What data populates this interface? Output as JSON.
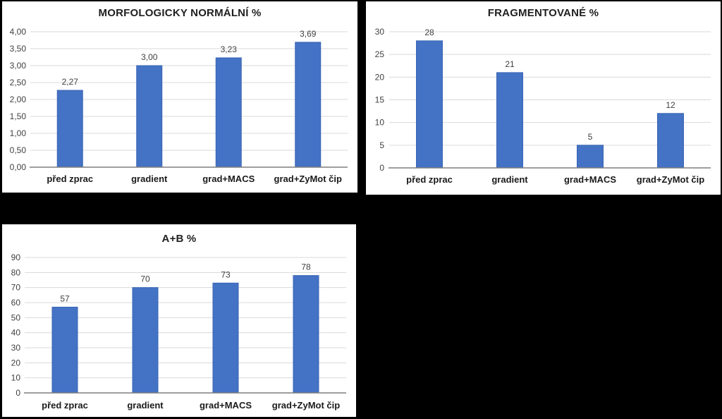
{
  "page": {
    "background": "#000000",
    "panel_background": "#ffffff"
  },
  "colors": {
    "bar": "#4472C4",
    "bar_border": "#3a65b5",
    "grid": "#d9d9d9",
    "axis": "#7f7f7f",
    "tick_text": "#404040",
    "label_text": "#404040",
    "category_text": "#1a1a1a",
    "title_text": "#1f1f1f"
  },
  "chart_data": [
    {
      "type": "bar",
      "title": "MORFOLOGICKY NORMÁLNÍ %",
      "xlabel": "",
      "ylabel": "",
      "categories": [
        "před zprac",
        "gradient",
        "grad+MACS",
        "grad+ZyMot čip"
      ],
      "values": [
        2.27,
        3.0,
        3.23,
        3.69
      ],
      "data_labels": [
        "2,27",
        "3,00",
        "3,23",
        "3,69"
      ],
      "ylim": [
        0,
        4
      ],
      "ytick_step": 0.5,
      "ytick_labels": [
        "0,00",
        "0,50",
        "1,00",
        "1,50",
        "2,00",
        "2,50",
        "3,00",
        "3,50",
        "4,00"
      ],
      "grid": true,
      "legend": "none"
    },
    {
      "type": "bar",
      "title": "FRAGMENTOVANÉ %",
      "xlabel": "",
      "ylabel": "",
      "categories": [
        "před zprac",
        "gradient",
        "grad+MACS",
        "grad+ZyMot čip"
      ],
      "values": [
        28,
        21,
        5,
        12
      ],
      "data_labels": [
        "28",
        "21",
        "5",
        "12"
      ],
      "ylim": [
        0,
        30
      ],
      "ytick_step": 5,
      "ytick_labels": [
        "0",
        "5",
        "10",
        "15",
        "20",
        "25",
        "30"
      ],
      "grid": true,
      "legend": "none"
    },
    {
      "type": "bar",
      "title": "A+B %",
      "xlabel": "",
      "ylabel": "",
      "categories": [
        "před zprac",
        "gradient",
        "grad+MACS",
        "grad+ZyMot čip"
      ],
      "values": [
        57,
        70,
        73,
        78
      ],
      "data_labels": [
        "57",
        "70",
        "73",
        "78"
      ],
      "ylim": [
        0,
        90
      ],
      "ytick_step": 10,
      "ytick_labels": [
        "0",
        "10",
        "20",
        "30",
        "40",
        "50",
        "60",
        "70",
        "80",
        "90"
      ],
      "grid": true,
      "legend": "none"
    }
  ]
}
